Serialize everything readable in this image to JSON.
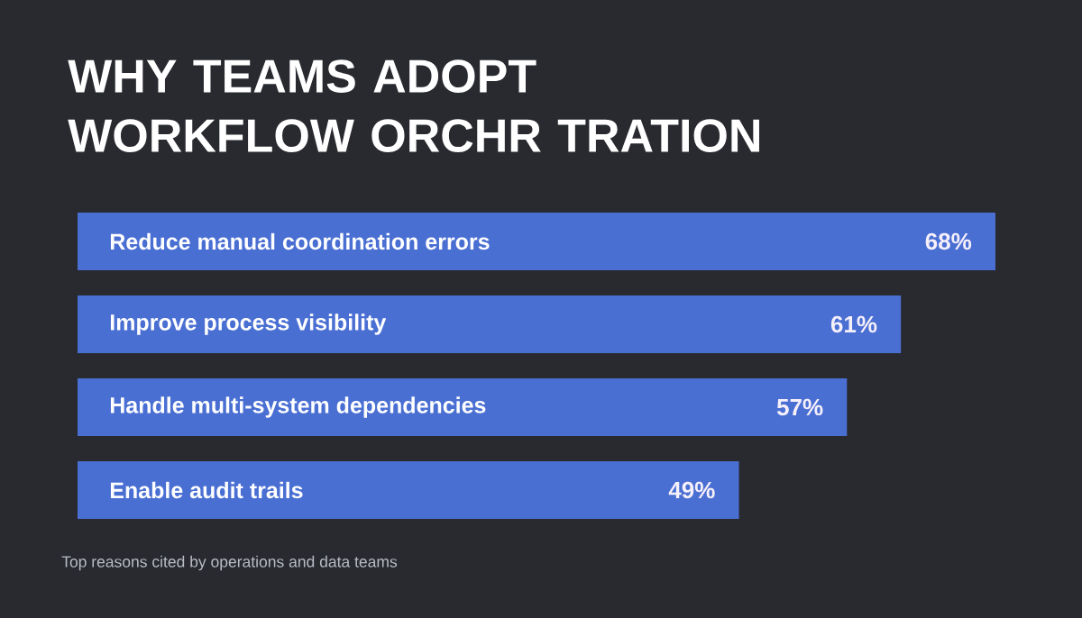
{
  "chart_data": {
    "type": "bar",
    "orientation": "horizontal",
    "title": "WHY TEAMS ADOPT WORKFLOW ORCHR TRATION",
    "categories": [
      "Reduce manual coordination errors",
      "Improve process visibility",
      "Handle multi-system dependencies",
      "Enable audit trails"
    ],
    "values": [
      68,
      61,
      57,
      49
    ],
    "value_labels": [
      "68%",
      "61%",
      "57%",
      "49%"
    ],
    "color": "#4a6fd3",
    "annotations": [
      "Top reasons cited by operations and data teams"
    ]
  }
}
